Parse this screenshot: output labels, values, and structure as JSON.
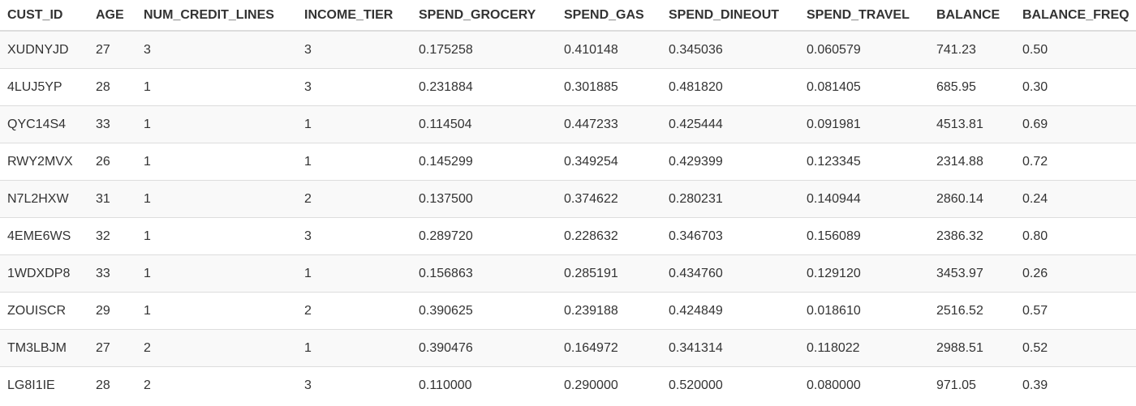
{
  "table": {
    "columns": [
      "CUST_ID",
      "AGE",
      "NUM_CREDIT_LINES",
      "INCOME_TIER",
      "SPEND_GROCERY",
      "SPEND_GAS",
      "SPEND_DINEOUT",
      "SPEND_TRAVEL",
      "BALANCE",
      "BALANCE_FREQ"
    ],
    "rows": [
      [
        "XUDNYJD",
        "27",
        "3",
        "3",
        "0.175258",
        "0.410148",
        "0.345036",
        "0.060579",
        "741.23",
        "0.50"
      ],
      [
        "4LUJ5YP",
        "28",
        "1",
        "3",
        "0.231884",
        "0.301885",
        "0.481820",
        "0.081405",
        "685.95",
        "0.30"
      ],
      [
        "QYC14S4",
        "33",
        "1",
        "1",
        "0.114504",
        "0.447233",
        "0.425444",
        "0.091981",
        "4513.81",
        "0.69"
      ],
      [
        "RWY2MVX",
        "26",
        "1",
        "1",
        "0.145299",
        "0.349254",
        "0.429399",
        "0.123345",
        "2314.88",
        "0.72"
      ],
      [
        "N7L2HXW",
        "31",
        "1",
        "2",
        "0.137500",
        "0.374622",
        "0.280231",
        "0.140944",
        "2860.14",
        "0.24"
      ],
      [
        "4EME6WS",
        "32",
        "1",
        "3",
        "0.289720",
        "0.228632",
        "0.346703",
        "0.156089",
        "2386.32",
        "0.80"
      ],
      [
        "1WDXDP8",
        "33",
        "1",
        "1",
        "0.156863",
        "0.285191",
        "0.434760",
        "0.129120",
        "3453.97",
        "0.26"
      ],
      [
        "ZOUISCR",
        "29",
        "1",
        "2",
        "0.390625",
        "0.239188",
        "0.424849",
        "0.018610",
        "2516.52",
        "0.57"
      ],
      [
        "TM3LBJM",
        "27",
        "2",
        "1",
        "0.390476",
        "0.164972",
        "0.341314",
        "0.118022",
        "2988.51",
        "0.52"
      ],
      [
        "LG8I1IE",
        "28",
        "2",
        "3",
        "0.110000",
        "0.290000",
        "0.520000",
        "0.080000",
        "971.05",
        "0.39"
      ]
    ]
  }
}
